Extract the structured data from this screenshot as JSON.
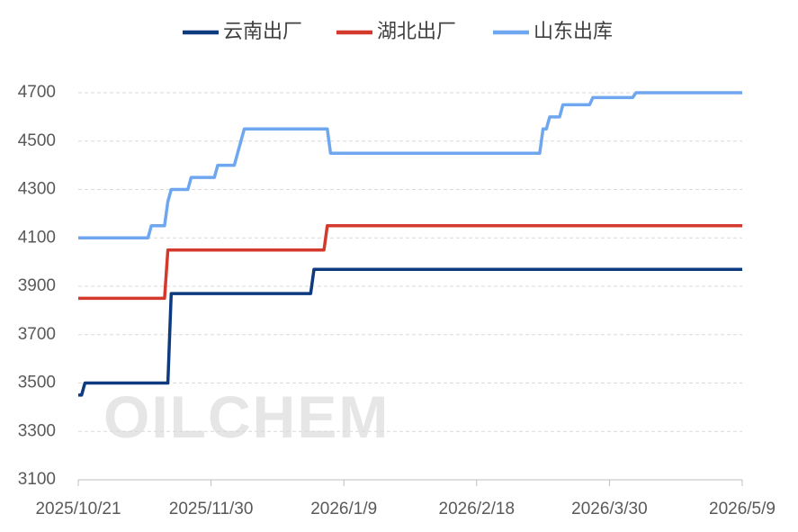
{
  "chart_data": {
    "type": "line",
    "watermark": "OILCHEM",
    "xlim": [
      "2025/10/21",
      "2026/5/9"
    ],
    "xticks": [
      "2025/10/21",
      "2025/11/30",
      "2026/1/9",
      "2026/2/18",
      "2026/3/30",
      "2026/5/9"
    ],
    "ylim": [
      3100,
      4700
    ],
    "yticks": [
      3100,
      3300,
      3500,
      3700,
      3900,
      4100,
      4300,
      4500,
      4700
    ],
    "grid": true,
    "legend": "top",
    "series": [
      {
        "name": "云南出厂",
        "color": "#0e3a80",
        "x": [
          "2025/10/21",
          "2025/10/22",
          "2025/10/23",
          "2025/11/17",
          "2025/11/18",
          "2025/12/30",
          "2025/12/31",
          "2026/5/9"
        ],
        "values": [
          3450,
          3450,
          3500,
          3500,
          3870,
          3870,
          3970,
          3970
        ]
      },
      {
        "name": "湖北出厂",
        "color": "#d33a2c",
        "x": [
          "2025/10/21",
          "2025/11/16",
          "2025/11/17",
          "2026/1/3",
          "2026/1/4",
          "2026/5/9"
        ],
        "values": [
          3850,
          3850,
          4050,
          4050,
          4150,
          4150
        ]
      },
      {
        "name": "山东出库",
        "color": "#6ea6ef",
        "x": [
          "2025/10/21",
          "2025/11/11",
          "2025/11/12",
          "2025/11/16",
          "2025/11/17",
          "2025/11/18",
          "2025/11/23",
          "2025/11/24",
          "2025/12/1",
          "2025/12/2",
          "2025/12/7",
          "2025/12/8",
          "2025/12/10",
          "2026/1/4",
          "2026/1/5",
          "2026/3/9",
          "2026/3/10",
          "2026/3/11",
          "2026/3/12",
          "2026/3/15",
          "2026/3/16",
          "2026/3/24",
          "2026/3/25",
          "2026/4/6",
          "2026/4/7",
          "2026/5/9"
        ],
        "values": [
          4100,
          4100,
          4150,
          4150,
          4250,
          4300,
          4300,
          4350,
          4350,
          4400,
          4400,
          4450,
          4550,
          4550,
          4450,
          4450,
          4550,
          4550,
          4600,
          4600,
          4650,
          4650,
          4680,
          4680,
          4700,
          4700
        ]
      }
    ]
  }
}
